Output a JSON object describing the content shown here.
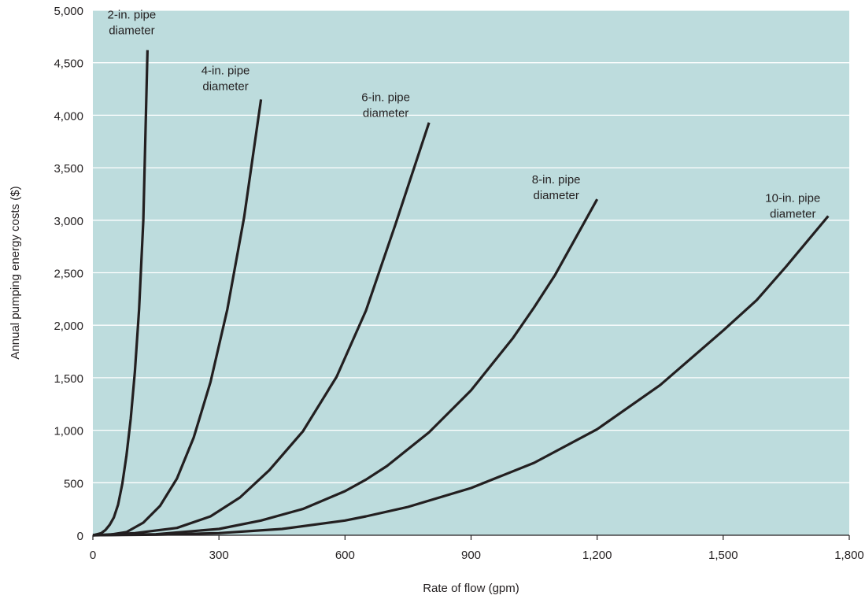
{
  "colors": {
    "plot_background": "#bddcdd",
    "gridline": "#ffffff",
    "series_line": "#231f20",
    "text": "#231f20"
  },
  "chart_data": {
    "type": "line",
    "title": "",
    "xlabel": "Rate of flow (gpm)",
    "ylabel": "Annual pumping energy costs ($)",
    "xlim": [
      0,
      1800
    ],
    "ylim": [
      0,
      5000
    ],
    "x_ticks": [
      0,
      300,
      600,
      900,
      1200,
      1500,
      1800
    ],
    "x_tick_labels": [
      "0",
      "300",
      "600",
      "900",
      "1,200",
      "1,500",
      "1,800"
    ],
    "y_ticks": [
      0,
      500,
      1000,
      1500,
      2000,
      2500,
      3000,
      3500,
      4000,
      4500,
      5000
    ],
    "y_tick_labels": [
      "0",
      "500",
      "1,000",
      "1,500",
      "2,000",
      "2,500",
      "3,000",
      "3,500",
      "4,000",
      "4,500",
      "5,000"
    ],
    "grid": "horizontal",
    "legend": "none",
    "series": [
      {
        "name": "2-in. pipe diameter",
        "label_lines": [
          "2-in. pipe",
          "diameter"
        ],
        "x": [
          0,
          20,
          30,
          40,
          50,
          60,
          70,
          80,
          90,
          100,
          110,
          120,
          130
        ],
        "y": [
          0,
          20,
          50,
          100,
          170,
          290,
          490,
          760,
          1110,
          1560,
          2150,
          3000,
          4620
        ]
      },
      {
        "name": "4-in. pipe diameter",
        "label_lines": [
          "4-in. pipe",
          "diameter"
        ],
        "x": [
          0,
          40,
          80,
          120,
          160,
          200,
          240,
          280,
          320,
          360,
          400
        ],
        "y": [
          0,
          5,
          30,
          120,
          280,
          540,
          930,
          1460,
          2150,
          3030,
          4150
        ]
      },
      {
        "name": "6-in. pipe diameter",
        "label_lines": [
          "6-in. pipe",
          "diameter"
        ],
        "x": [
          0,
          100,
          200,
          280,
          350,
          420,
          500,
          580,
          650,
          720,
          800
        ],
        "y": [
          0,
          20,
          70,
          180,
          360,
          620,
          990,
          1510,
          2140,
          2960,
          3930
        ]
      },
      {
        "name": "8-in. pipe diameter",
        "label_lines": [
          "8-in. pipe",
          "diameter"
        ],
        "x": [
          0,
          150,
          300,
          400,
          500,
          600,
          650,
          700,
          800,
          900,
          1000,
          1050,
          1100,
          1200
        ],
        "y": [
          0,
          10,
          60,
          140,
          250,
          420,
          530,
          660,
          980,
          1380,
          1880,
          2170,
          2480,
          3200
        ]
      },
      {
        "name": "10-in. pipe diameter",
        "label_lines": [
          "10-in. pipe",
          "diameter"
        ],
        "x": [
          0,
          150,
          300,
          450,
          600,
          650,
          750,
          900,
          1050,
          1200,
          1350,
          1500,
          1580,
          1650,
          1750
        ],
        "y": [
          0,
          5,
          20,
          60,
          140,
          180,
          270,
          450,
          690,
          1010,
          1430,
          1950,
          2240,
          2560,
          3040
        ]
      }
    ]
  }
}
